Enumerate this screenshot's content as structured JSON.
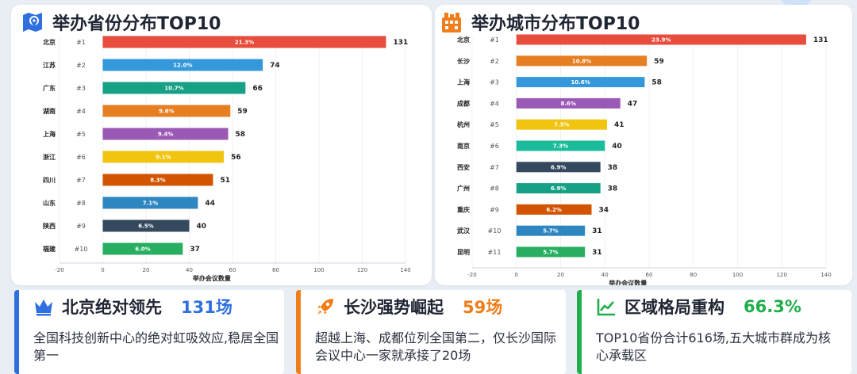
{
  "left_panel": {
    "title": "举办省份分布TOP10",
    "icon": "map-pin-icon",
    "accent": "#2f6fdf"
  },
  "right_panel": {
    "title": "举办城市分布TOP10",
    "icon": "city-building-icon",
    "accent": "#ef7d1a"
  },
  "chart_data": [
    {
      "type": "bar",
      "orientation": "horizontal",
      "title": "举办省份分布TOP10",
      "xlabel": "举办会议数量",
      "ylabel": "",
      "xlim": [
        -20,
        140
      ],
      "xticks": [
        -20,
        0,
        20,
        40,
        60,
        80,
        100,
        120,
        140
      ],
      "grid": true,
      "categories": [
        "北京",
        "江苏",
        "广东",
        "湖南",
        "上海",
        "浙江",
        "四川",
        "山东",
        "陕西",
        "福建"
      ],
      "ranks": [
        "#1",
        "#2",
        "#3",
        "#4",
        "#5",
        "#6",
        "#7",
        "#8",
        "#9",
        "#10"
      ],
      "values": [
        131,
        74,
        66,
        59,
        58,
        56,
        51,
        44,
        40,
        37
      ],
      "percent_labels": [
        "21.3%",
        "12.0%",
        "10.7%",
        "9.6%",
        "9.4%",
        "9.1%",
        "8.3%",
        "7.1%",
        "6.5%",
        "6.0%"
      ],
      "colors": [
        "#e74c3c",
        "#3498db",
        "#16a085",
        "#e67e22",
        "#9b59b6",
        "#f1c40f",
        "#d35400",
        "#2e86c1",
        "#34495e",
        "#27ae60"
      ]
    },
    {
      "type": "bar",
      "orientation": "horizontal",
      "title": "举办城市分布TOP10",
      "xlabel": "举办会议数量",
      "ylabel": "",
      "xlim": [
        -20,
        140
      ],
      "xticks": [
        -20,
        0,
        20,
        40,
        60,
        80,
        100,
        120,
        140
      ],
      "grid": true,
      "categories": [
        "北京",
        "长沙",
        "上海",
        "成都",
        "杭州",
        "南京",
        "西安",
        "广州",
        "重庆",
        "武汉",
        "昆明"
      ],
      "ranks": [
        "#1",
        "#2",
        "#3",
        "#4",
        "#5",
        "#6",
        "#7",
        "#8",
        "#9",
        "#10",
        "#11"
      ],
      "values": [
        131,
        59,
        58,
        47,
        41,
        40,
        38,
        38,
        34,
        31,
        31
      ],
      "percent_labels": [
        "23.9%",
        "10.8%",
        "10.6%",
        "8.6%",
        "7.5%",
        "7.3%",
        "6.9%",
        "6.9%",
        "6.2%",
        "5.7%",
        "5.7%"
      ],
      "colors": [
        "#e74c3c",
        "#e67e22",
        "#3498db",
        "#9b59b6",
        "#f1c40f",
        "#1abc9c",
        "#34495e",
        "#16a085",
        "#d35400",
        "#2e86c1",
        "#27ae60"
      ]
    }
  ],
  "cards": [
    {
      "icon": "crown-icon",
      "title": "北京绝对领先",
      "value": "131场",
      "value_color": "#2f6fdf",
      "text": "全国科技创新中心的绝对虹吸效应,稳居全国第一"
    },
    {
      "icon": "rocket-icon",
      "title": "长沙强势崛起",
      "value": "59场",
      "value_color": "#ef7d1a",
      "text": "超越上海、成都位列全国第二，仅长沙国际会议中心一家就承接了20场"
    },
    {
      "icon": "trend-chart-icon",
      "title": "区域格局重构",
      "value": "66.3%",
      "value_color": "#1fae4b",
      "text": "TOP10省份合计616场,五大城市群成为核心承载区"
    }
  ]
}
